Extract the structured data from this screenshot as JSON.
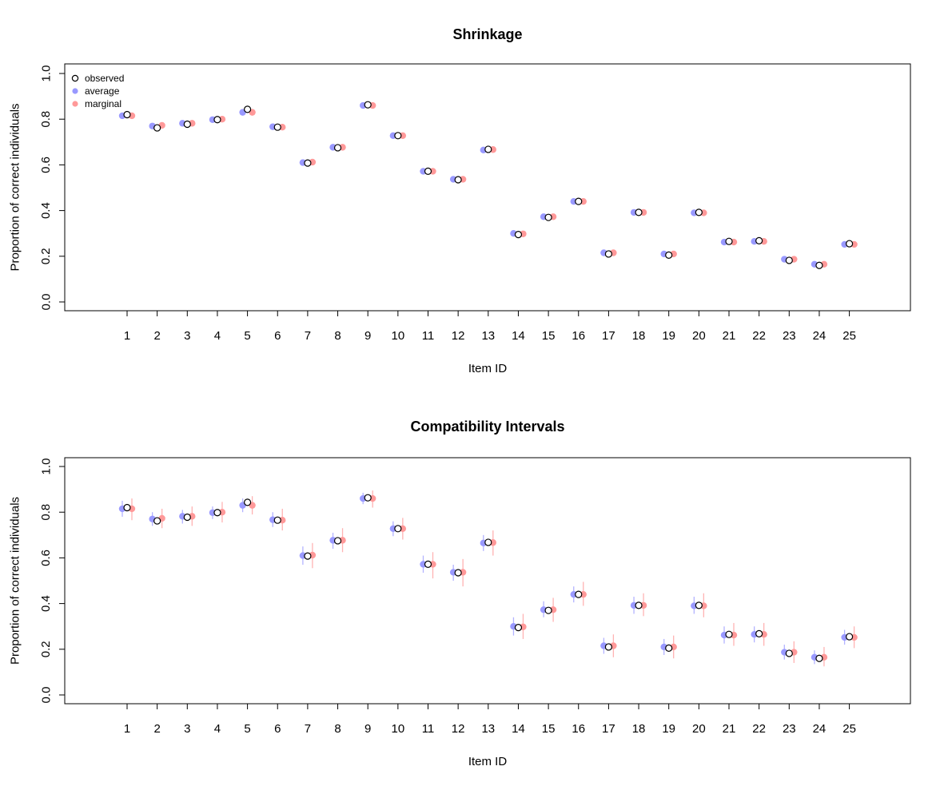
{
  "colors": {
    "observed_fill": "#ffffff",
    "observed_stroke": "#000000",
    "average": "#9999ff",
    "marginal": "#ff9999",
    "average_interval": "#b3b3ff",
    "marginal_interval": "#ffb3b3"
  },
  "legend": {
    "placement": "top-left",
    "observed": "observed",
    "average": "average",
    "marginal": "marginal"
  },
  "chart_data": [
    {
      "type": "scatter",
      "title": "Shrinkage",
      "xlabel": "Item ID",
      "ylabel": "Proportion of correct individuals",
      "ylim": [
        0,
        1
      ],
      "yticks": [
        "0.0",
        "0.2",
        "0.4",
        "0.6",
        "0.8",
        "1.0"
      ],
      "categories": [
        "1",
        "2",
        "3",
        "4",
        "5",
        "6",
        "7",
        "8",
        "9",
        "10",
        "11",
        "12",
        "13",
        "14",
        "15",
        "16",
        "17",
        "18",
        "19",
        "20",
        "21",
        "22",
        "23",
        "24",
        "25"
      ],
      "grid": false,
      "legend": true,
      "intervals": false,
      "series": [
        {
          "name": "observed",
          "values": [
            0.82,
            0.762,
            0.778,
            0.798,
            0.843,
            0.765,
            0.608,
            0.675,
            0.863,
            0.728,
            0.572,
            0.535,
            0.668,
            0.295,
            0.37,
            0.44,
            0.21,
            0.392,
            0.205,
            0.392,
            0.265,
            0.268,
            0.182,
            0.16,
            0.255
          ]
        },
        {
          "name": "average",
          "values": [
            0.815,
            0.77,
            0.782,
            0.798,
            0.83,
            0.767,
            0.61,
            0.677,
            0.86,
            0.728,
            0.572,
            0.537,
            0.665,
            0.3,
            0.373,
            0.44,
            0.215,
            0.392,
            0.21,
            0.39,
            0.262,
            0.265,
            0.187,
            0.165,
            0.252
          ]
        },
        {
          "name": "marginal",
          "values": [
            0.815,
            0.773,
            0.782,
            0.8,
            0.83,
            0.765,
            0.612,
            0.677,
            0.86,
            0.728,
            0.572,
            0.537,
            0.667,
            0.298,
            0.373,
            0.44,
            0.215,
            0.392,
            0.21,
            0.39,
            0.262,
            0.265,
            0.187,
            0.165,
            0.252
          ]
        }
      ]
    },
    {
      "type": "scatter",
      "title": "Compatibility Intervals",
      "xlabel": "Item ID",
      "ylabel": "Proportion of correct individuals",
      "ylim": [
        0,
        1
      ],
      "yticks": [
        "0.0",
        "0.2",
        "0.4",
        "0.6",
        "0.8",
        "1.0"
      ],
      "categories": [
        "1",
        "2",
        "3",
        "4",
        "5",
        "6",
        "7",
        "8",
        "9",
        "10",
        "11",
        "12",
        "13",
        "14",
        "15",
        "16",
        "17",
        "18",
        "19",
        "20",
        "21",
        "22",
        "23",
        "24",
        "25"
      ],
      "grid": false,
      "legend": false,
      "intervals": true,
      "series": [
        {
          "name": "observed",
          "values": [
            0.82,
            0.762,
            0.778,
            0.798,
            0.843,
            0.765,
            0.608,
            0.675,
            0.863,
            0.728,
            0.572,
            0.535,
            0.668,
            0.295,
            0.37,
            0.44,
            0.21,
            0.392,
            0.205,
            0.392,
            0.265,
            0.268,
            0.182,
            0.16,
            0.255
          ]
        },
        {
          "name": "average",
          "values": [
            0.815,
            0.77,
            0.782,
            0.798,
            0.83,
            0.767,
            0.61,
            0.677,
            0.86,
            0.728,
            0.572,
            0.537,
            0.665,
            0.3,
            0.373,
            0.44,
            0.215,
            0.392,
            0.21,
            0.39,
            0.262,
            0.265,
            0.187,
            0.165,
            0.252
          ],
          "lower": [
            0.78,
            0.74,
            0.75,
            0.77,
            0.8,
            0.735,
            0.57,
            0.64,
            0.835,
            0.695,
            0.535,
            0.5,
            0.63,
            0.26,
            0.34,
            0.405,
            0.18,
            0.355,
            0.175,
            0.355,
            0.225,
            0.23,
            0.155,
            0.135,
            0.22
          ],
          "upper": [
            0.85,
            0.8,
            0.81,
            0.825,
            0.86,
            0.8,
            0.65,
            0.71,
            0.885,
            0.76,
            0.61,
            0.57,
            0.7,
            0.34,
            0.41,
            0.475,
            0.25,
            0.43,
            0.245,
            0.43,
            0.3,
            0.3,
            0.22,
            0.195,
            0.285
          ]
        },
        {
          "name": "marginal",
          "values": [
            0.815,
            0.773,
            0.782,
            0.8,
            0.83,
            0.765,
            0.612,
            0.677,
            0.86,
            0.728,
            0.572,
            0.537,
            0.667,
            0.298,
            0.373,
            0.44,
            0.215,
            0.392,
            0.21,
            0.39,
            0.262,
            0.265,
            0.187,
            0.165,
            0.252
          ],
          "lower": [
            0.765,
            0.73,
            0.74,
            0.755,
            0.79,
            0.72,
            0.555,
            0.625,
            0.82,
            0.68,
            0.51,
            0.475,
            0.61,
            0.245,
            0.32,
            0.39,
            0.165,
            0.345,
            0.16,
            0.34,
            0.215,
            0.215,
            0.14,
            0.125,
            0.205
          ],
          "upper": [
            0.86,
            0.815,
            0.825,
            0.845,
            0.87,
            0.815,
            0.665,
            0.73,
            0.895,
            0.775,
            0.625,
            0.595,
            0.72,
            0.355,
            0.425,
            0.495,
            0.265,
            0.445,
            0.26,
            0.445,
            0.315,
            0.315,
            0.235,
            0.21,
            0.3
          ]
        }
      ]
    }
  ]
}
